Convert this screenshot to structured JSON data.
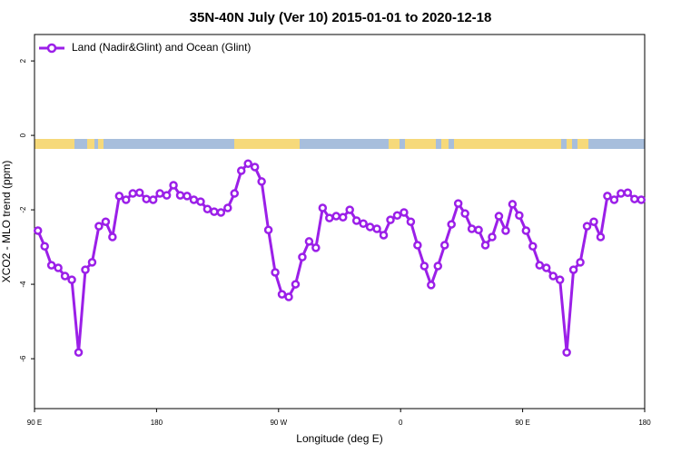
{
  "chart_data": {
    "type": "line",
    "title": "35N-40N July (Ver 10)   2015-01-01 to 2020-12-18",
    "xlabel": "Longitude (deg E)",
    "ylabel": "XCO2 - MLO trend (ppm)",
    "x": [
      92.5,
      97.5,
      102.5,
      107.5,
      112.5,
      117.5,
      122.5,
      127.5,
      132.5,
      137.5,
      142.5,
      147.5,
      152.5,
      157.5,
      162.5,
      167.5,
      172.5,
      177.5,
      182.5,
      187.5,
      192.5,
      197.5,
      202.5,
      207.5,
      212.5,
      217.5,
      222.5,
      227.5,
      232.5,
      237.5,
      242.5,
      247.5,
      252.5,
      257.5,
      262.5,
      267.5,
      272.5,
      277.5,
      282.5,
      287.5,
      292.5,
      297.5,
      302.5,
      307.5,
      312.5,
      317.5,
      322.5,
      327.5,
      332.5,
      337.5,
      342.5,
      347.5,
      352.5,
      357.5,
      362.5,
      367.5,
      372.5,
      377.5,
      382.5,
      387.5,
      392.5,
      397.5,
      402.5,
      407.5,
      412.5,
      417.5,
      422.5,
      427.5,
      432.5,
      437.5,
      442.5,
      447.5,
      452.5,
      457.5,
      462.5,
      467.5,
      472.5,
      477.5,
      482.5,
      487.5,
      492.5,
      497.5,
      502.5,
      507.5,
      512.5,
      517.5,
      522.5,
      527.5,
      532.5,
      537.5
    ],
    "series": [
      {
        "name": "Land (Nadir&Glint) and Ocean (Glint)",
        "color": "#9b1fe8",
        "values": [
          -2.56,
          -2.98,
          -3.49,
          -3.56,
          -3.78,
          -3.88,
          -5.83,
          -3.61,
          -3.41,
          -2.44,
          -2.32,
          -2.73,
          -1.63,
          -1.73,
          -1.56,
          -1.54,
          -1.71,
          -1.73,
          -1.56,
          -1.61,
          -1.34,
          -1.61,
          -1.63,
          -1.73,
          -1.78,
          -1.98,
          -2.05,
          -2.07,
          -1.95,
          -1.56,
          -0.95,
          -0.76,
          -0.85,
          -1.24,
          -2.54,
          -3.68,
          -4.27,
          -4.34,
          -4.0,
          -3.27,
          -2.85,
          -3.02,
          -1.95,
          -2.22,
          -2.17,
          -2.2,
          -2.0,
          -2.29,
          -2.37,
          -2.46,
          -2.51,
          -2.68,
          -2.27,
          -2.15,
          -2.07,
          -2.32,
          -2.95,
          -3.51,
          -4.02,
          -3.51,
          -2.95,
          -2.39,
          -1.83,
          -2.1,
          -2.51,
          -2.54,
          -2.95,
          -2.73,
          -2.17,
          -2.56,
          -1.85,
          -2.15,
          -2.56,
          -2.98,
          -3.49,
          -3.56,
          -3.78,
          -3.88,
          -5.83,
          -3.61,
          -3.41,
          -2.44,
          -2.32,
          -2.73,
          -1.63,
          -1.73,
          -1.56,
          -1.54,
          -1.71,
          -1.73
        ]
      }
    ],
    "xlim": [
      90,
      540
    ],
    "xticks": [
      {
        "value": 90,
        "label": "90 E"
      },
      180,
      {
        "value": 270,
        "label": "90 W"
      },
      {
        "value": 360,
        "label": "0"
      },
      {
        "value": 450,
        "label": "90 E"
      },
      {
        "value": 540,
        "label": "180"
      }
    ],
    "ylim": [
      -7.34,
      2.71
    ],
    "yticks": [
      2,
      0,
      -2,
      -4,
      -6
    ],
    "legend": "top-left"
  }
}
